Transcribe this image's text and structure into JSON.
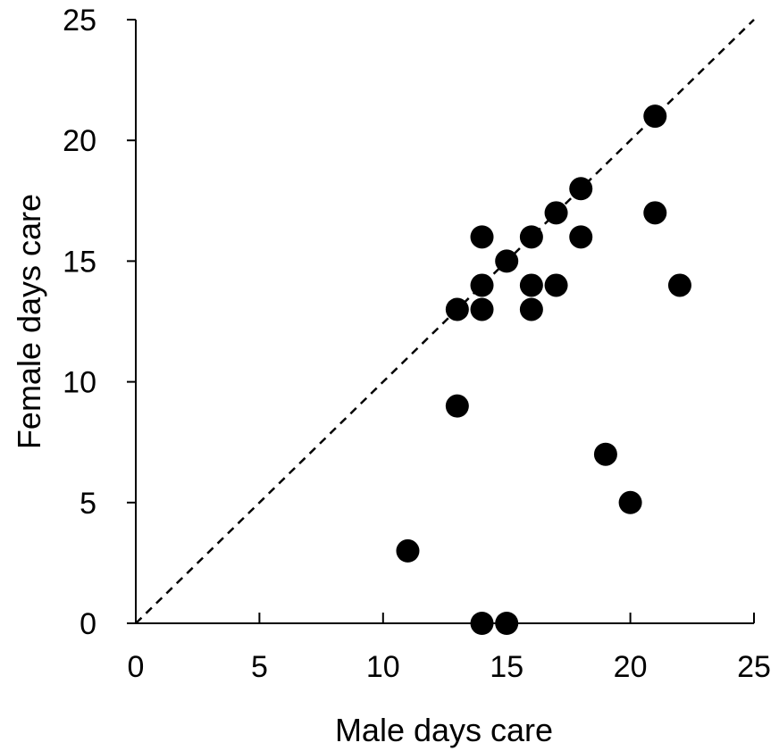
{
  "chart_data": {
    "type": "scatter",
    "title": "",
    "xlabel": "Male days care",
    "ylabel": "Female days care",
    "xlim": [
      0,
      25
    ],
    "ylim": [
      0,
      25
    ],
    "xticks": [
      "0",
      "5",
      "10",
      "15",
      "20",
      "25"
    ],
    "yticks": [
      "0",
      "5",
      "10",
      "15",
      "20",
      "25"
    ],
    "grid": false,
    "legend": "none",
    "reference_line": {
      "style": "dashed",
      "from": [
        0,
        0
      ],
      "to": [
        25,
        25
      ]
    },
    "marker_color": "#000000",
    "series": [
      {
        "points": [
          {
            "x": 11,
            "y": 3
          },
          {
            "x": 13,
            "y": 9
          },
          {
            "x": 13,
            "y": 13
          },
          {
            "x": 14,
            "y": 0
          },
          {
            "x": 14,
            "y": 13
          },
          {
            "x": 14,
            "y": 14
          },
          {
            "x": 14,
            "y": 16
          },
          {
            "x": 15,
            "y": 0
          },
          {
            "x": 15,
            "y": 15
          },
          {
            "x": 16,
            "y": 13
          },
          {
            "x": 16,
            "y": 14
          },
          {
            "x": 16,
            "y": 16
          },
          {
            "x": 17,
            "y": 14
          },
          {
            "x": 17,
            "y": 17
          },
          {
            "x": 18,
            "y": 16
          },
          {
            "x": 18,
            "y": 18
          },
          {
            "x": 19,
            "y": 7
          },
          {
            "x": 20,
            "y": 5
          },
          {
            "x": 21,
            "y": 17
          },
          {
            "x": 21,
            "y": 21
          },
          {
            "x": 22,
            "y": 14
          }
        ]
      }
    ]
  }
}
